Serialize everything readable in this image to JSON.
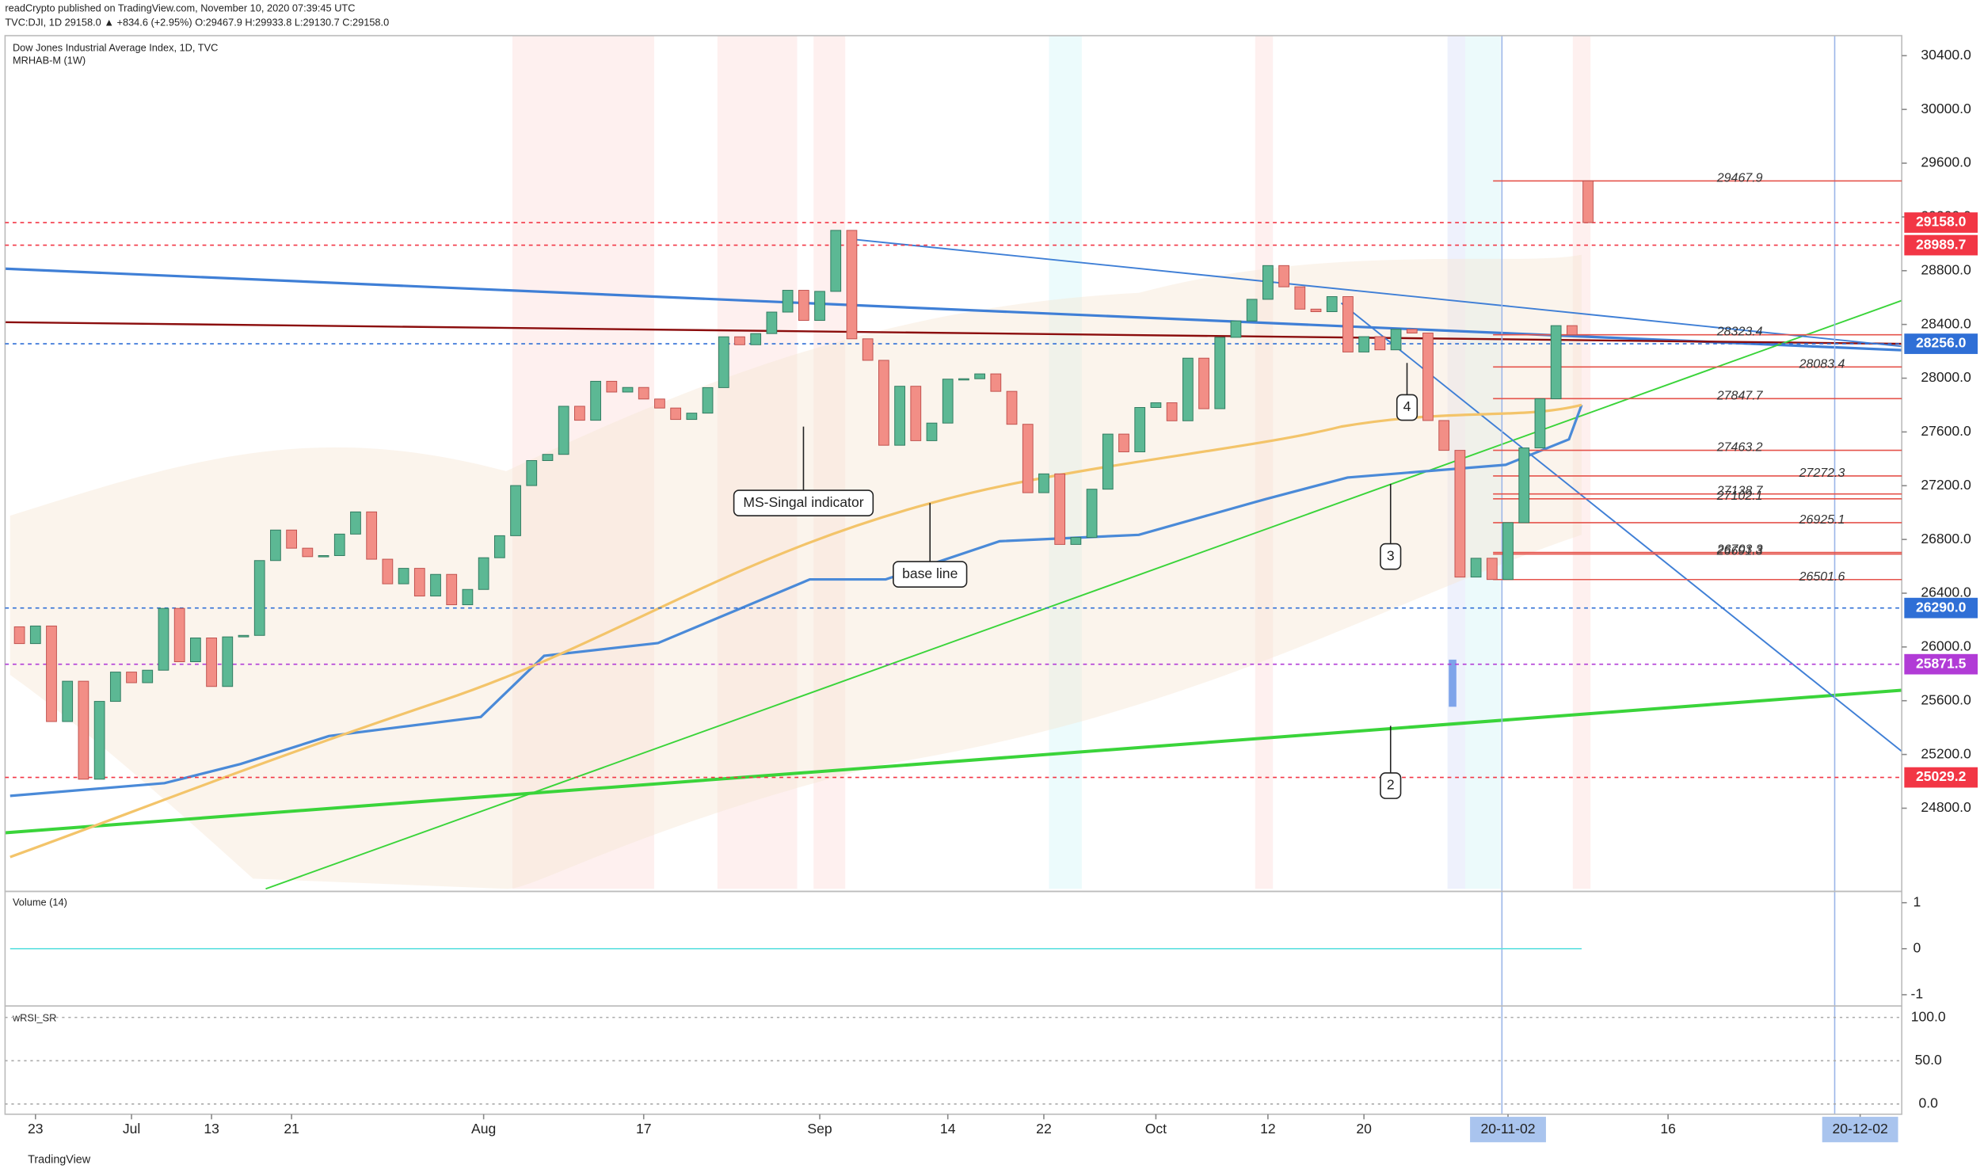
{
  "header": {
    "publisher": "readCrypto published on TradingView.com, November 10, 2020 07:39:45 UTC",
    "symbol_line": "TVC:DJI, 1D 29158.0 ▲ +834.6 (+2.95%) O:29467.9 H:29933.8 L:29130.7 C:29158.0"
  },
  "footer": {
    "brand": "TradingView"
  },
  "chart_data": {
    "type": "candlestick",
    "title": "Dow Jones Industrial Average Index, 1D, TVC",
    "subtitle": "MRHAB-M (1W)",
    "open": [
      26150,
      26025,
      26156,
      25445,
      25745,
      25016,
      25595,
      25813,
      25734,
      25827,
      26287,
      25890,
      26067,
      25706,
      26075,
      26086,
      26643,
      26870,
      26735,
      26672,
      26680,
      26840,
      27005,
      26653,
      26470,
      26585,
      26379,
      26540,
      26314,
      26428,
      26664,
      26828,
      27201,
      27387,
      27433,
      27791,
      27687,
      27977,
      27897,
      27931,
      27845,
      27778,
      27693,
      27740,
      27930,
      28308,
      28249,
      28332,
      28492,
      28654,
      28430,
      28646,
      29100,
      28293,
      28133,
      27501,
      27940,
      27535,
      27666,
      27993,
      27996,
      28032,
      27902,
      27657,
      27148,
      27288,
      26763,
      26815,
      27174,
      27584,
      27452,
      27782,
      27817,
      27683,
      28149,
      27773,
      28304,
      28426,
      28587,
      28838,
      28680,
      28514,
      28495,
      28607,
      28195,
      28309,
      28211,
      28364,
      28336,
      27685,
      27463,
      26520,
      26660,
      26502,
      26925,
      27481,
      27847,
      28391,
      29467.9
    ],
    "close": [
      26025,
      26156,
      25445,
      25745,
      25016,
      25595,
      25813,
      25734,
      25827,
      26287,
      25890,
      26067,
      25706,
      26075,
      26086,
      26643,
      26870,
      26735,
      26672,
      26680,
      26840,
      27005,
      26653,
      26470,
      26585,
      26379,
      26540,
      26314,
      26428,
      26664,
      26828,
      27201,
      27387,
      27433,
      27791,
      27687,
      27977,
      27897,
      27931,
      27845,
      27778,
      27693,
      27740,
      27930,
      28308,
      28249,
      28332,
      28492,
      28654,
      28430,
      28646,
      29100,
      28293,
      28133,
      27501,
      27940,
      27535,
      27666,
      27993,
      27996,
      28032,
      27902,
      27657,
      27148,
      27288,
      26763,
      26815,
      27174,
      27584,
      27452,
      27782,
      27817,
      27683,
      28149,
      27773,
      28304,
      28426,
      28587,
      28838,
      28680,
      28514,
      28495,
      28607,
      28195,
      28309,
      28211,
      28364,
      28336,
      27685,
      27463,
      26520,
      26660,
      26502,
      26925,
      27481,
      27847,
      28391,
      28323,
      29158
    ],
    "up_color": "#5cb894",
    "down_color": "#f28e86",
    "xlim": [
      -0.9,
      117.6
    ],
    "xticks": [
      {
        "value": 1,
        "label": "23"
      },
      {
        "value": 7,
        "label": "Jul"
      },
      {
        "value": 12,
        "label": "13"
      },
      {
        "value": 17,
        "label": "21"
      },
      {
        "value": 29,
        "label": "Aug"
      },
      {
        "value": 39,
        "label": "17"
      },
      {
        "value": 50,
        "label": "Sep"
      },
      {
        "value": 58,
        "label": "14"
      },
      {
        "value": 64,
        "label": "22"
      },
      {
        "value": 71,
        "label": "Oct"
      },
      {
        "value": 78,
        "label": "12"
      },
      {
        "value": 84,
        "label": "20"
      },
      {
        "value": 93,
        "label": "20-11-02"
      },
      {
        "value": 103,
        "label": "16"
      },
      {
        "value": 115,
        "label": "20-12-02"
      }
    ],
    "ylim": [
      24200,
      30530
    ],
    "yticks": [
      {
        "value": 24800,
        "label": "24800.0"
      },
      {
        "value": 25200,
        "label": "25200.0"
      },
      {
        "value": 25600,
        "label": "25600.0"
      },
      {
        "value": 26000,
        "label": "26000.0"
      },
      {
        "value": 26400,
        "label": "26400.0"
      },
      {
        "value": 26800,
        "label": "26800.0"
      },
      {
        "value": 27200,
        "label": "27200.0"
      },
      {
        "value": 27600,
        "label": "27600.0"
      },
      {
        "value": 28000,
        "label": "28000.0"
      },
      {
        "value": 28400,
        "label": "28400.0"
      },
      {
        "value": 28800,
        "label": "28800.0"
      },
      {
        "value": 29200,
        "label": "29200.0"
      },
      {
        "value": 29600,
        "label": "29600.0"
      },
      {
        "value": 30000,
        "label": "30000.0"
      },
      {
        "value": 30400,
        "label": "30400.0"
      }
    ],
    "levels": [
      29467.9,
      28323.4,
      28083.4,
      27847.7,
      27463.2,
      27272.3,
      27138.7,
      27102.1,
      26925.1,
      26703.3,
      26691.3,
      26501.6
    ],
    "level_color": "#e5534b",
    "price_tags": [
      {
        "value": 29158,
        "label": "29158.0",
        "color": "#f23645"
      },
      {
        "value": 28989.7,
        "label": "28989.7",
        "color": "#f23645"
      },
      {
        "value": 28256,
        "label": "28256.0",
        "color": "#2f6fd6"
      },
      {
        "value": 26290,
        "label": "26290.0",
        "color": "#2f6fd6"
      },
      {
        "value": 25871.5,
        "label": "25871.5",
        "color": "#b13bd6"
      },
      {
        "value": 25029.2,
        "label": "25029.2",
        "color": "#f23645"
      }
    ],
    "annotations": [
      "MS-Singal indicator",
      "base line",
      "4",
      "3",
      "2"
    ],
    "volume_pane": {
      "title": "Volume (14)",
      "ylim": [
        -1.19,
        1.19
      ],
      "yticks": [
        1,
        0,
        -1
      ]
    },
    "rsi_pane": {
      "title": "wRSI_SR",
      "ylim": [
        -11.8,
        113.2
      ],
      "yticks": [
        {
          "value": 100,
          "label": "100.0"
        },
        {
          "value": 50,
          "label": "50.0"
        },
        {
          "value": 0,
          "label": "0.0"
        }
      ]
    }
  }
}
